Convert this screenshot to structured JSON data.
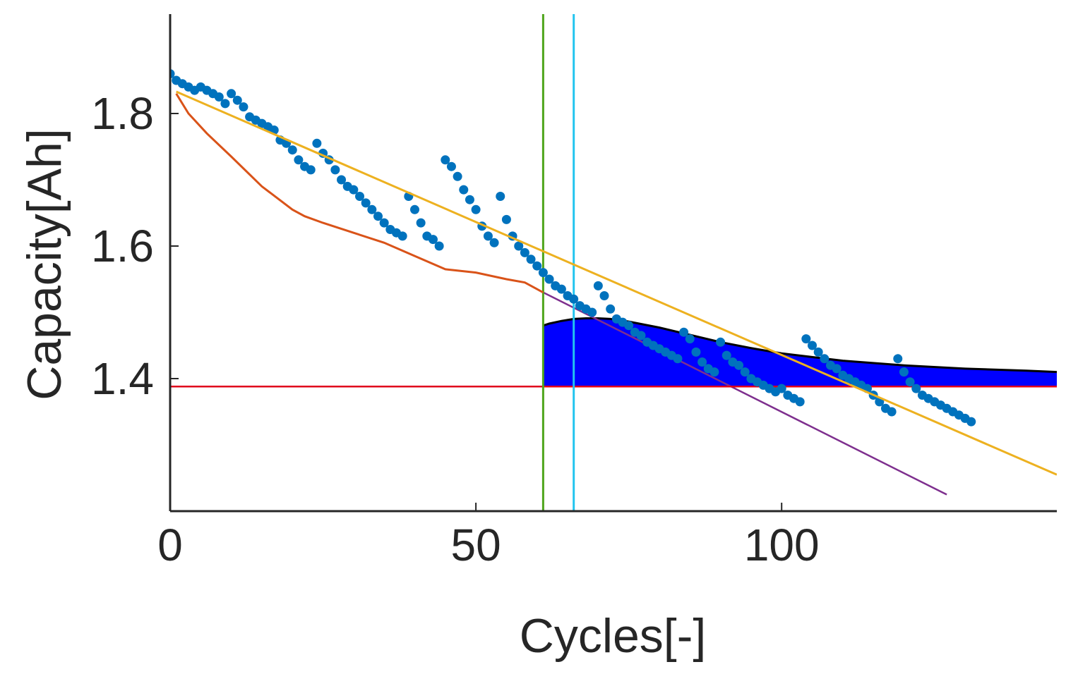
{
  "chart_data": {
    "type": "line",
    "title": "",
    "xlabel": "Cycles[-]",
    "ylabel": "Capacity[Ah]",
    "xlim": [
      0,
      145
    ],
    "ylim": [
      1.2,
      1.95
    ],
    "x_ticks": [
      0,
      50,
      100
    ],
    "x_tick_labels": [
      "0",
      "50",
      "100"
    ],
    "y_ticks": [
      1.4,
      1.6,
      1.8
    ],
    "y_tick_labels": [
      "1.4",
      "1.6",
      "1.8"
    ],
    "grid": false,
    "colors": {
      "measured": "#0072BD",
      "estimate": "#D95319",
      "trend": "#EDB120",
      "projection": "#7E2F8E",
      "threshold": "#E0001B",
      "start_marker": "#4FA51C",
      "eol_marker": "#22C4EE",
      "band_fill": "#0000FF",
      "band_edge": "#000000"
    },
    "series": [
      {
        "name": "measured capacity",
        "kind": "scatter",
        "x": [
          0,
          1,
          2,
          3,
          4,
          5,
          6,
          7,
          8,
          9,
          10,
          11,
          12,
          13,
          14,
          15,
          16,
          17,
          18,
          19,
          20,
          21,
          22,
          23,
          24,
          25,
          26,
          27,
          28,
          29,
          30,
          31,
          32,
          33,
          34,
          35,
          36,
          37,
          38,
          39,
          40,
          41,
          42,
          43,
          44,
          45,
          46,
          47,
          48,
          49,
          50,
          51,
          52,
          53,
          54,
          55,
          56,
          57,
          58,
          59,
          60,
          61,
          62,
          63,
          64,
          65,
          66,
          67,
          68,
          69,
          70,
          71,
          72,
          73,
          74,
          75,
          76,
          77,
          78,
          79,
          80,
          81,
          82,
          83,
          84,
          85,
          86,
          87,
          88,
          89,
          90,
          91,
          92,
          93,
          94,
          95,
          96,
          97,
          98,
          99,
          100,
          101,
          102,
          103,
          104,
          105,
          106,
          107,
          108,
          109,
          110,
          111,
          112,
          113,
          114,
          115,
          116,
          117,
          118,
          119,
          120,
          121,
          122,
          123,
          124,
          125,
          126,
          127,
          128,
          129,
          130,
          131
        ],
        "y": [
          1.86,
          1.85,
          1.845,
          1.84,
          1.835,
          1.84,
          1.835,
          1.83,
          1.825,
          1.815,
          1.83,
          1.82,
          1.81,
          1.795,
          1.79,
          1.785,
          1.78,
          1.775,
          1.76,
          1.755,
          1.745,
          1.73,
          1.72,
          1.715,
          1.755,
          1.74,
          1.73,
          1.715,
          1.7,
          1.69,
          1.685,
          1.675,
          1.665,
          1.655,
          1.645,
          1.635,
          1.625,
          1.62,
          1.615,
          1.675,
          1.655,
          1.635,
          1.615,
          1.61,
          1.6,
          1.73,
          1.72,
          1.705,
          1.685,
          1.67,
          1.655,
          1.63,
          1.615,
          1.605,
          1.675,
          1.64,
          1.615,
          1.6,
          1.59,
          1.58,
          1.57,
          1.56,
          1.55,
          1.54,
          1.535,
          1.525,
          1.52,
          1.51,
          1.505,
          1.5,
          1.54,
          1.525,
          1.505,
          1.49,
          1.485,
          1.48,
          1.47,
          1.465,
          1.455,
          1.45,
          1.445,
          1.44,
          1.435,
          1.43,
          1.47,
          1.46,
          1.44,
          1.425,
          1.415,
          1.41,
          1.455,
          1.435,
          1.425,
          1.42,
          1.41,
          1.4,
          1.395,
          1.39,
          1.385,
          1.38,
          1.385,
          1.375,
          1.37,
          1.365,
          1.46,
          1.45,
          1.44,
          1.43,
          1.42,
          1.415,
          1.405,
          1.4,
          1.395,
          1.39,
          1.385,
          1.375,
          1.365,
          1.355,
          1.35,
          1.43,
          1.41,
          1.395,
          1.385,
          1.375,
          1.37,
          1.365,
          1.36,
          1.355,
          1.35,
          1.345,
          1.34,
          1.335
        ]
      },
      {
        "name": "estimated capacity",
        "kind": "line",
        "x": [
          1,
          3,
          6,
          10,
          15,
          20,
          22,
          25,
          30,
          35,
          40,
          45,
          50,
          55,
          58,
          61
        ],
        "y": [
          1.83,
          1.8,
          1.77,
          1.735,
          1.69,
          1.655,
          1.645,
          1.635,
          1.62,
          1.605,
          1.585,
          1.565,
          1.56,
          1.55,
          1.545,
          1.53
        ]
      },
      {
        "name": "linear trend",
        "kind": "line",
        "x": [
          1,
          145
        ],
        "y": [
          1.833,
          1.255
        ]
      },
      {
        "name": "projected degradation",
        "kind": "line",
        "x": [
          61,
          127
        ],
        "y": [
          1.53,
          1.225
        ]
      },
      {
        "name": "EOL threshold",
        "kind": "hline",
        "y": 1.388
      },
      {
        "name": "prediction start",
        "kind": "vline",
        "x": 61
      },
      {
        "name": "predicted EOL",
        "kind": "vline",
        "x": 66
      },
      {
        "name": "prediction distribution",
        "kind": "area",
        "baseline": 1.388,
        "x": [
          61,
          62,
          64,
          66,
          68,
          70,
          72,
          75,
          80,
          85,
          90,
          95,
          100,
          110,
          120,
          130,
          140,
          145
        ],
        "y": [
          1.48,
          1.483,
          1.487,
          1.49,
          1.491,
          1.491,
          1.49,
          1.486,
          1.477,
          1.466,
          1.455,
          1.446,
          1.438,
          1.427,
          1.42,
          1.415,
          1.412,
          1.41
        ]
      }
    ]
  }
}
